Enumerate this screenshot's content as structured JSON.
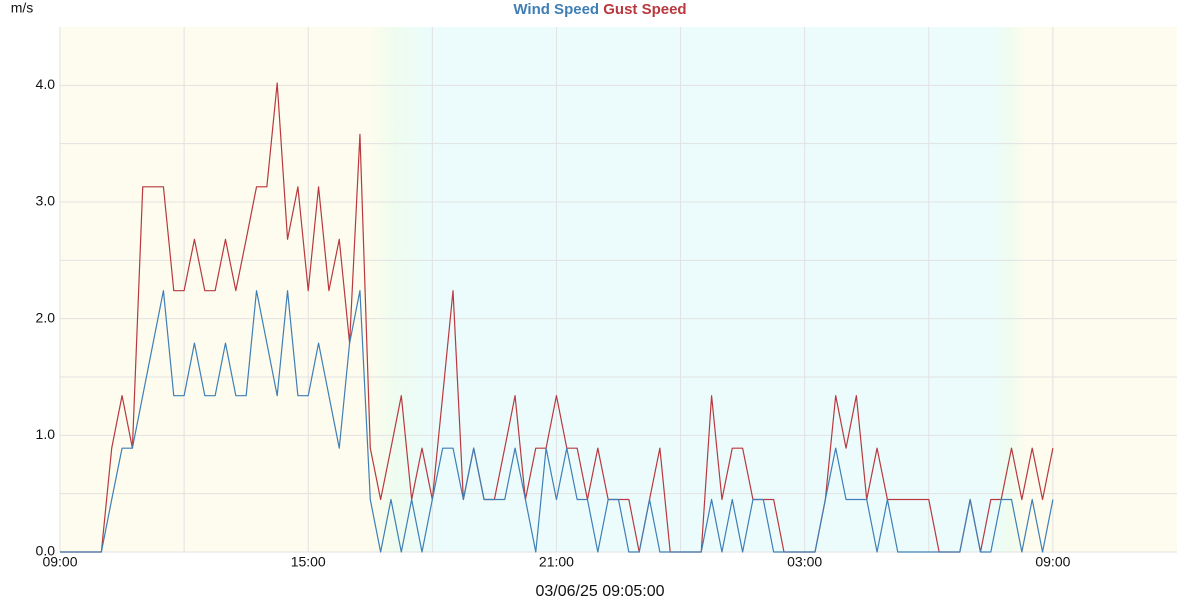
{
  "chart_data": {
    "type": "line",
    "ylabel": "m/s",
    "xlabel": "03/06/25 09:05:00",
    "x": [
      0,
      0.25,
      0.5,
      0.75,
      1,
      1.25,
      1.5,
      1.75,
      2,
      2.25,
      2.5,
      2.75,
      3,
      3.25,
      3.5,
      3.75,
      4,
      4.25,
      4.5,
      4.75,
      5,
      5.25,
      5.5,
      5.75,
      6,
      6.25,
      6.5,
      6.75,
      7,
      7.25,
      7.5,
      7.75,
      8,
      8.25,
      8.5,
      8.75,
      9,
      9.25,
      9.5,
      9.75,
      10,
      10.25,
      10.5,
      10.75,
      11,
      11.25,
      11.5,
      11.75,
      12,
      12.25,
      12.5,
      12.75,
      13,
      13.25,
      13.5,
      13.75,
      14,
      14.25,
      14.5,
      14.75,
      15,
      15.25,
      15.5,
      15.75,
      16,
      16.25,
      16.5,
      16.75,
      17,
      17.25,
      17.5,
      17.75,
      18,
      18.25,
      18.5,
      18.75,
      19,
      19.25,
      19.5,
      19.75,
      20,
      20.25,
      20.5,
      20.75,
      21,
      21.25,
      21.5,
      21.75,
      22,
      22.25,
      22.5,
      22.75,
      23,
      23.25,
      23.5,
      23.75,
      24
    ],
    "series": [
      {
        "name": "Wind Speed",
        "color": "#3f7fb6",
        "values": [
          0,
          0,
          0,
          0,
          0,
          0.45,
          0.89,
          0.89,
          1.34,
          1.79,
          2.24,
          1.34,
          1.34,
          1.79,
          1.34,
          1.34,
          1.79,
          1.34,
          1.34,
          2.24,
          1.79,
          1.34,
          2.24,
          1.34,
          1.34,
          1.79,
          1.34,
          0.89,
          1.79,
          2.24,
          0.45,
          0,
          0.45,
          0,
          0.45,
          0,
          0.45,
          0.89,
          0.89,
          0.45,
          0.89,
          0.45,
          0.45,
          0.45,
          0.89,
          0.45,
          0,
          0.89,
          0.45,
          0.89,
          0.45,
          0.45,
          0,
          0.45,
          0.45,
          0,
          0,
          0.45,
          0,
          0,
          0,
          0,
          0,
          0.45,
          0,
          0.45,
          0,
          0.45,
          0.45,
          0,
          0,
          0,
          0,
          0,
          0.45,
          0.89,
          0.45,
          0.45,
          0.45,
          0,
          0.45,
          0,
          0,
          0,
          0,
          0,
          0,
          0,
          0.45,
          0,
          0,
          0.45,
          0.45,
          0,
          0.45,
          0,
          0.45
        ]
      },
      {
        "name": "Gust Speed",
        "color": "#b8393f",
        "values": [
          0,
          0,
          0,
          0,
          0,
          0.89,
          1.34,
          0.89,
          3.13,
          3.13,
          3.13,
          2.24,
          2.24,
          2.68,
          2.24,
          2.24,
          2.68,
          2.24,
          2.68,
          3.13,
          3.13,
          4.02,
          2.68,
          3.13,
          2.24,
          3.13,
          2.24,
          2.68,
          1.79,
          3.58,
          0.89,
          0.45,
          0.89,
          1.34,
          0.45,
          0.89,
          0.45,
          1.34,
          2.24,
          0.45,
          0.89,
          0.45,
          0.45,
          0.89,
          1.34,
          0.45,
          0.89,
          0.89,
          1.34,
          0.89,
          0.89,
          0.45,
          0.89,
          0.45,
          0.45,
          0.45,
          0,
          0.45,
          0.89,
          0,
          0,
          0,
          0,
          1.34,
          0.45,
          0.89,
          0.89,
          0.45,
          0.45,
          0.45,
          0,
          0,
          0,
          0,
          0.45,
          1.34,
          0.89,
          1.34,
          0.45,
          0.89,
          0.45,
          0.45,
          0.45,
          0.45,
          0.45,
          0,
          0,
          0,
          0.45,
          0,
          0.45,
          0.45,
          0.89,
          0.45,
          0.89,
          0.45,
          0.89
        ]
      }
    ],
    "xlim": [
      0,
      27
    ],
    "ylim": [
      0,
      4.5
    ],
    "xticks": [
      {
        "value": 0,
        "label": "09:00"
      },
      {
        "value": 6,
        "label": "15:00"
      },
      {
        "value": 12,
        "label": "21:00"
      },
      {
        "value": 18,
        "label": "03:00"
      },
      {
        "value": 24,
        "label": "09:00"
      }
    ],
    "yticks": [
      {
        "value": 0,
        "label": "0.0"
      },
      {
        "value": 1,
        "label": "1.0"
      },
      {
        "value": 2,
        "label": "2.0"
      },
      {
        "value": 3,
        "label": "3.0"
      },
      {
        "value": 4,
        "label": "4.0"
      }
    ],
    "x_minor_ticks": [
      3,
      9,
      15,
      21
    ],
    "y_minor_ticks": [
      0.5,
      1.5,
      2.5,
      3.5
    ],
    "grid": true
  }
}
